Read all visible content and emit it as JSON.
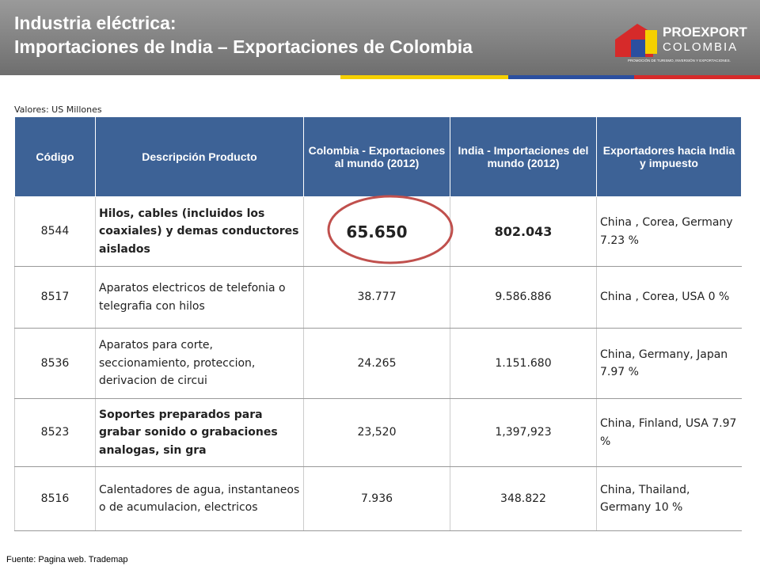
{
  "header": {
    "title_line1": "Industria eléctrica:",
    "title_line2": "Importaciones de India – Exportaciones de Colombia"
  },
  "logo": {
    "name1": "PROEXPORT",
    "name2": "COLOMBIA",
    "tagline": "PROMOCIÓN DE TURISMO, INVERSIÓN Y EXPORTACIONES."
  },
  "note": "Valores: US Millones",
  "table": {
    "headers": [
      "Código",
      "Descripción Producto",
      "Colombia - Exportaciones al mundo (2012)",
      "India - Importaciones del mundo (2012)",
      "Exportadores hacia India  y  impuesto"
    ],
    "rows": [
      [
        "8544",
        "Hilos, cables (incluidos los coaxiales) y demas conductores aislados",
        "65.650",
        "802.043",
        "China , Corea, Germany 7.23 %"
      ],
      [
        "8517",
        "Aparatos electricos de telefonia o telegrafia con hilos",
        "38.777",
        "9.586.886",
        "China , Corea, USA 0 %"
      ],
      [
        "8536",
        "Aparatos para corte, seccionamiento, proteccion, derivacion de circui",
        "24.265",
        "1.151.680",
        "China, Germany, Japan 7.97 %"
      ],
      [
        "8523",
        "Soportes preparados para grabar sonido o grabaciones analogas, sin gra",
        "23,520",
        "1,397,923",
        "China, Finland, USA 7.97 %"
      ],
      [
        "8516",
        "Calentadores de agua, instantaneos o de acumulacion, electricos",
        "7.936",
        "348.822",
        "China, Thailand, Germany 10 %"
      ]
    ]
  },
  "footer": "Fuente: Pagina web. Trademap"
}
